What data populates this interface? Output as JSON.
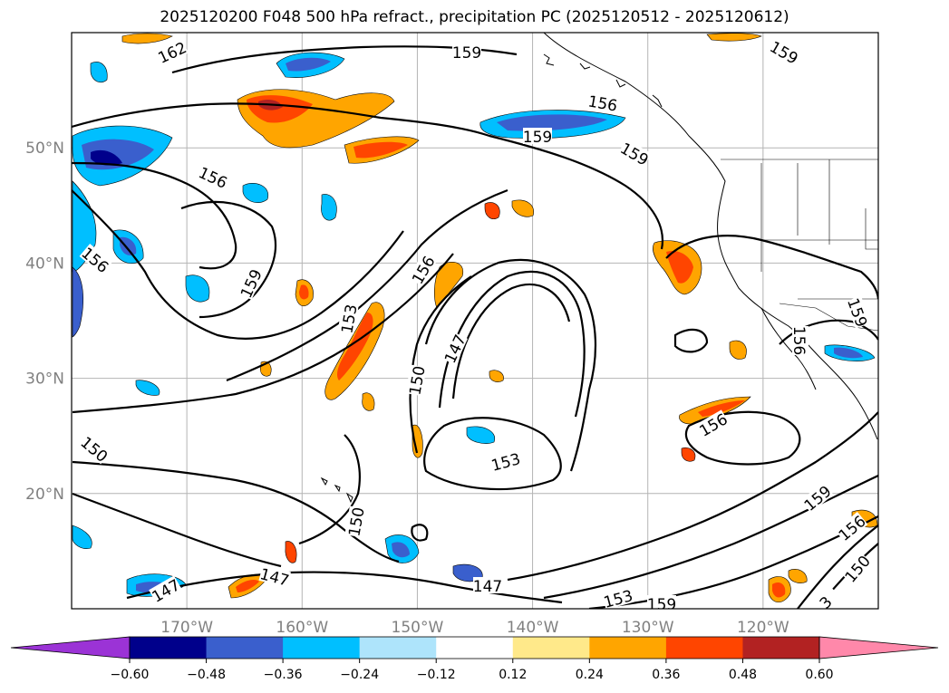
{
  "title": "2025120200 F048 500 hPa refract., precipitation PC (2025120512 - 2025120612)",
  "map": {
    "lat_labels": [
      "50°N",
      "40°N",
      "30°N",
      "20°N"
    ],
    "lon_labels": [
      "170°W",
      "160°W",
      "150°W",
      "140°W",
      "130°W",
      "120°W"
    ],
    "lat_values": [
      50,
      40,
      30,
      20
    ],
    "lon_values": [
      -170,
      -160,
      -150,
      -140,
      -130,
      -120
    ],
    "extent": {
      "lon_min": -180,
      "lon_max": -110,
      "lat_min": 10,
      "lat_max": 60
    },
    "gridlines": true,
    "label_color": "#808080",
    "contour_labels": [
      {
        "text": "162"
      },
      {
        "text": "159"
      },
      {
        "text": "159"
      },
      {
        "text": "156"
      },
      {
        "text": "159"
      },
      {
        "text": "159"
      },
      {
        "text": "156"
      },
      {
        "text": "156"
      },
      {
        "text": "159"
      },
      {
        "text": "156"
      },
      {
        "text": "153"
      },
      {
        "text": "147"
      },
      {
        "text": "150"
      },
      {
        "text": "156"
      },
      {
        "text": "153"
      },
      {
        "text": "150"
      },
      {
        "text": "147"
      },
      {
        "text": "147"
      },
      {
        "text": "147"
      },
      {
        "text": "153"
      },
      {
        "text": "159"
      },
      {
        "text": "156"
      },
      {
        "text": "159"
      },
      {
        "text": "156"
      },
      {
        "text": "150"
      },
      {
        "text": "3"
      },
      {
        "text": "159"
      },
      {
        "text": "150"
      }
    ]
  },
  "colorbar": {
    "ticks": [
      "−0.60",
      "−0.48",
      "−0.36",
      "−0.24",
      "−0.12",
      "0.12",
      "0.24",
      "0.36",
      "0.48",
      "0.60"
    ],
    "colors": [
      "#9b33d6",
      "#00008b",
      "#3a5fcd",
      "#00bfff",
      "#aee4fb",
      "#ffffff",
      "#ffe98a",
      "#ffa500",
      "#ff4500",
      "#b22222",
      "#ff88aa"
    ],
    "extend": "both"
  },
  "shading_colors": {
    "neg_strong": "#00008b",
    "neg_mid": "#3a5fcd",
    "neg": "#00bfff",
    "neg_light": "#aee4fb",
    "pos_light": "#ffe98a",
    "pos": "#ffa500",
    "pos_mid": "#ff4500",
    "pos_strong": "#b22222"
  }
}
